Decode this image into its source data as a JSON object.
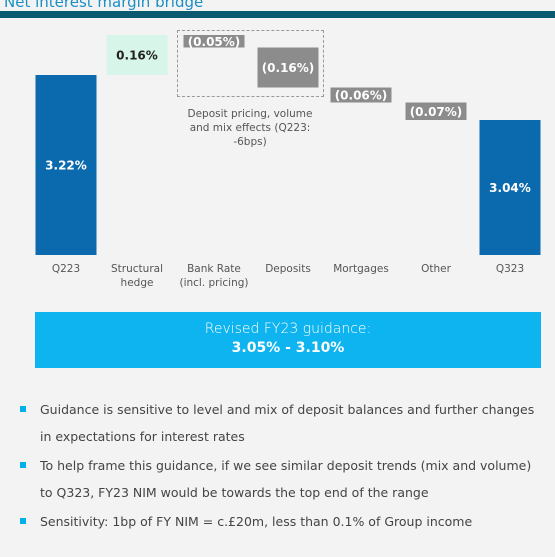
{
  "chart_data": {
    "type": "waterfall",
    "title": "Net interest margin bridge",
    "categories": [
      "Q223",
      "Structural hedge",
      "Bank Rate (incl. pricing)",
      "Deposits",
      "Mortgages",
      "Other",
      "Q323"
    ],
    "values": [
      3.22,
      0.16,
      -0.05,
      -0.16,
      -0.06,
      -0.07,
      3.04
    ],
    "value_labels": [
      "3.22%",
      "0.16%",
      "(0.05%)",
      "(0.16%)",
      "(0.06%)",
      "(0.07%)",
      "3.04%"
    ],
    "totals": [
      true,
      false,
      false,
      false,
      false,
      false,
      true
    ],
    "colors": {
      "total": "#0a6aad",
      "increase": "#d8f5ea",
      "decrease": "#8c8c8c"
    },
    "ylim": [
      2.5,
      3.4
    ],
    "annotation": "Deposit pricing, volume and mix effects (Q223: -6bps)"
  },
  "guidance": {
    "title": "Revised FY23 guidance:",
    "range": "3.05% - 3.10%"
  },
  "bullets": [
    "Guidance is sensitive to level and mix of deposit balances and further changes in expectations for interest rates",
    "To help frame this guidance, if we see similar deposit trends (mix and volume) to Q323, FY23 NIM would be towards the top end of the range",
    "Sensitivity: 1bp of FY NIM = c.£20m, less than 0.1% of Group income"
  ]
}
